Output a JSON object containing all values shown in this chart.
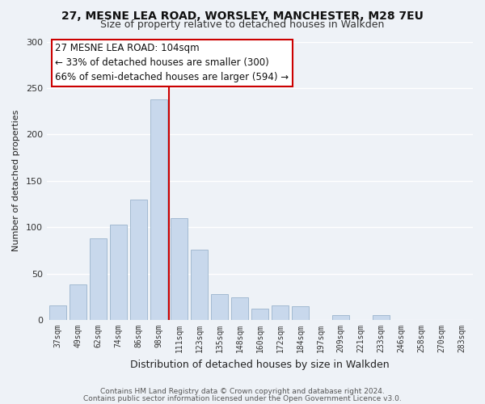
{
  "title_line1": "27, MESNE LEA ROAD, WORSLEY, MANCHESTER, M28 7EU",
  "title_line2": "Size of property relative to detached houses in Walkden",
  "xlabel": "Distribution of detached houses by size in Walkden",
  "ylabel": "Number of detached properties",
  "bar_labels": [
    "37sqm",
    "49sqm",
    "62sqm",
    "74sqm",
    "86sqm",
    "98sqm",
    "111sqm",
    "123sqm",
    "135sqm",
    "148sqm",
    "160sqm",
    "172sqm",
    "184sqm",
    "197sqm",
    "209sqm",
    "221sqm",
    "233sqm",
    "246sqm",
    "258sqm",
    "270sqm",
    "283sqm"
  ],
  "bar_heights": [
    16,
    38,
    88,
    103,
    130,
    238,
    110,
    76,
    28,
    24,
    12,
    16,
    15,
    0,
    5,
    0,
    5,
    0,
    0,
    0,
    0
  ],
  "bar_color": "#c8d8ec",
  "bar_edge_color": "#9ab4cc",
  "vline_x_index": 5.5,
  "vline_color": "#cc0000",
  "annotation_title": "27 MESNE LEA ROAD: 104sqm",
  "annotation_line1": "← 33% of detached houses are smaller (300)",
  "annotation_line2": "66% of semi-detached houses are larger (594) →",
  "annotation_box_color": "#ffffff",
  "annotation_box_edge": "#cc0000",
  "ylim": [
    0,
    300
  ],
  "yticks": [
    0,
    50,
    100,
    150,
    200,
    250,
    300
  ],
  "footer1": "Contains HM Land Registry data © Crown copyright and database right 2024.",
  "footer2": "Contains public sector information licensed under the Open Government Licence v3.0.",
  "background_color": "#eef2f7",
  "grid_color": "#ffffff",
  "title_fontsize": 10,
  "subtitle_fontsize": 9
}
